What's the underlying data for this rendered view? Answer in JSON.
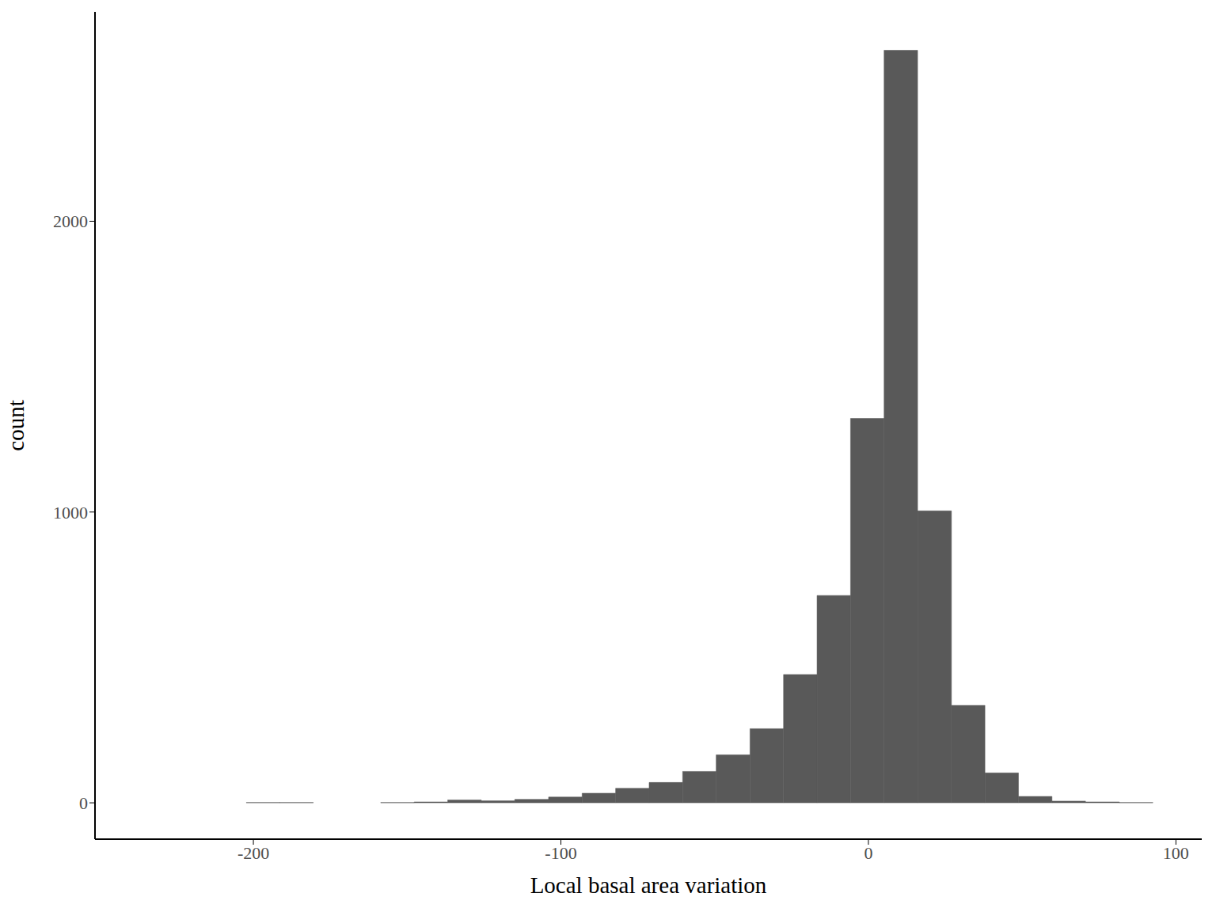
{
  "chart_data": {
    "type": "histogram",
    "x_label": "Local basal area variation",
    "y_label": "count",
    "bins": [
      -202.3,
      -191.4,
      -180.5,
      -169.5,
      -158.6,
      -147.7,
      -136.8,
      -125.9,
      -115.0,
      -104.0,
      -93.1,
      -82.2,
      -71.3,
      -60.4,
      -49.5,
      -38.5,
      -27.6,
      -16.7,
      -5.8,
      5.1,
      16.0,
      27.0,
      37.9,
      48.8,
      59.7,
      70.6,
      81.6,
      92.5
    ],
    "values": [
      1,
      1,
      0,
      0,
      1,
      3,
      10,
      7,
      12,
      20,
      33,
      50,
      70,
      108,
      165,
      255,
      441,
      713,
      1322,
      2588,
      1004,
      335,
      103,
      22,
      6,
      3,
      1
    ],
    "color": "#595959",
    "xlim": [
      -251.5,
      108.4
    ],
    "xticks": [
      -200,
      -100,
      0,
      100
    ],
    "ylim": [
      -125,
      2720
    ],
    "yticks": [
      0,
      1000,
      2000
    ],
    "grid": false
  }
}
